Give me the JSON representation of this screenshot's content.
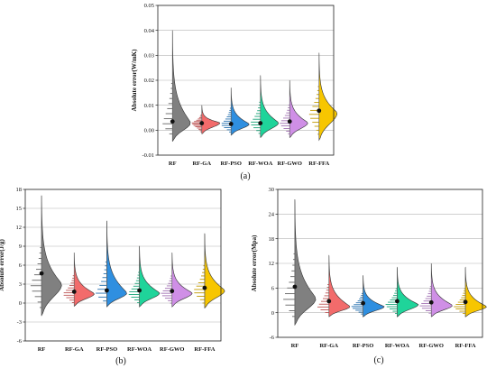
{
  "chart_data": [
    {
      "type": "violin",
      "panel_label": "(a)",
      "title": "",
      "xlabel": "",
      "ylabel": "Absolute error(W/mK)",
      "ylim": [
        -0.01,
        0.05
      ],
      "yticks": [
        -0.01,
        0.0,
        0.01,
        0.02,
        0.03,
        0.04,
        0.05
      ],
      "ytick_labels": [
        "-0.01",
        "0.00",
        "0.01",
        "0.02",
        "0.03",
        "0.04",
        "0.05"
      ],
      "grid": true,
      "categories": [
        "RF",
        "RF-GA",
        "RF-PSO",
        "RF-WOA",
        "RF-GWO",
        "RF-FFA"
      ],
      "colors": [
        "#808080",
        "#f26b6b",
        "#2f8fe0",
        "#1fd49a",
        "#cf8fe6",
        "#f7c600"
      ],
      "mean": [
        0.0035,
        0.0028,
        0.0025,
        0.0028,
        0.0035,
        0.0078
      ],
      "mode": [
        0.003,
        0.003,
        0.0025,
        0.003,
        0.003,
        0.007
      ],
      "min": [
        -0.0045,
        -0.0015,
        -0.002,
        -0.003,
        -0.003,
        -0.004
      ],
      "max": [
        0.04,
        0.01,
        0.017,
        0.022,
        0.02,
        0.031
      ]
    },
    {
      "type": "violin",
      "panel_label": "(b)",
      "title": "",
      "xlabel": "",
      "ylabel": "Absolute error(J/g)",
      "ylim": [
        -6,
        18
      ],
      "yticks": [
        -6,
        -3,
        0,
        3,
        6,
        9,
        12,
        15,
        18
      ],
      "ytick_labels": [
        "-6",
        "-3",
        "0",
        "3",
        "6",
        "9",
        "12",
        "15",
        "18"
      ],
      "grid": true,
      "categories": [
        "RF",
        "RF-GA",
        "RF-PSO",
        "RF-WOA",
        "RF-GWO",
        "RF-FFA"
      ],
      "colors": [
        "#808080",
        "#f26b6b",
        "#2f8fe0",
        "#1fd49a",
        "#cf8fe6",
        "#f7c600"
      ],
      "mean": [
        4.7,
        1.8,
        2.0,
        2.0,
        1.9,
        2.4
      ],
      "mode": [
        3.0,
        1.5,
        1.6,
        1.6,
        1.6,
        2.0
      ],
      "min": [
        -2.0,
        -0.5,
        -0.6,
        -0.6,
        -0.6,
        -0.8
      ],
      "max": [
        17.0,
        8.0,
        13.0,
        9.0,
        8.0,
        11.0
      ]
    },
    {
      "type": "violin",
      "panel_label": "(c)",
      "title": "",
      "xlabel": "",
      "ylabel": "Absolute error(Mpa)",
      "ylim": [
        -6,
        30
      ],
      "yticks": [
        -6,
        0,
        6,
        12,
        18,
        24,
        30
      ],
      "ytick_labels": [
        "-6",
        "0",
        "6",
        "12",
        "18",
        "24",
        "30"
      ],
      "grid": true,
      "categories": [
        "RF",
        "RF-GA",
        "RF-PSO",
        "RF-WOA",
        "RF-GWO",
        "RF-FFA"
      ],
      "colors": [
        "#808080",
        "#f26b6b",
        "#2f8fe0",
        "#1fd49a",
        "#cf8fe6",
        "#f7c600"
      ],
      "mean": [
        6.3,
        2.8,
        2.3,
        2.8,
        2.5,
        2.6
      ],
      "mode": [
        3.5,
        1.5,
        1.5,
        2.0,
        1.8,
        1.5
      ],
      "min": [
        -3.0,
        -1.0,
        -1.0,
        -1.0,
        -1.0,
        -1.0
      ],
      "max": [
        27.5,
        14.0,
        9.0,
        11.0,
        12.0,
        11.0
      ]
    }
  ]
}
